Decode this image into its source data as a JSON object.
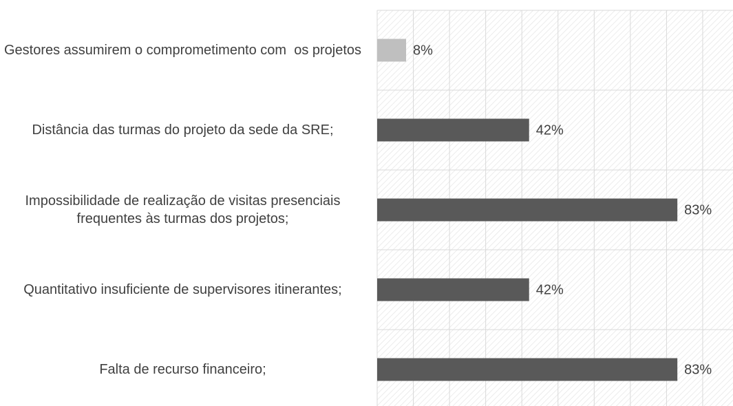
{
  "chart_data": {
    "type": "hbar",
    "categories": [
      "Gestores assumirem o comprometimento com  os projetos",
      "Distância das turmas do projeto da sede da SRE;",
      "Impossibilidade de realização de visitas presenciais frequentes às turmas dos projetos;",
      "Quantitativo insuficiente de supervisores itinerantes;",
      "Falta de recurso financeiro;"
    ],
    "values": [
      8,
      42,
      83,
      42,
      83
    ],
    "value_labels": [
      "8%",
      "42%",
      "83%",
      "42%",
      "83%"
    ],
    "colors": [
      "#bfbfbf",
      "#595959",
      "#595959",
      "#595959",
      "#595959"
    ],
    "xlim": [
      0,
      98
    ],
    "xticks": [
      0,
      10,
      20,
      30,
      40,
      50,
      60,
      70,
      80,
      90
    ],
    "grid": true
  }
}
